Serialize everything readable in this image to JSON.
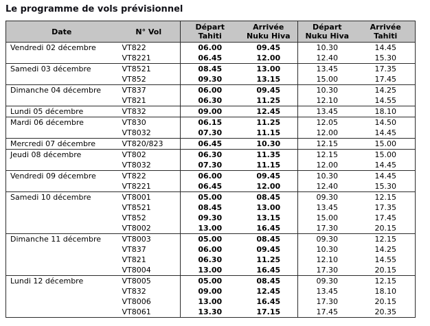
{
  "title": "Le programme de vols prévisionnel",
  "colors": {
    "header_bg": "#c6c6c6",
    "border": "#2a2a2a",
    "text": "#000000"
  },
  "table": {
    "headers": {
      "date": "Date",
      "vol": "N° Vol",
      "dep_tahiti": [
        "Départ",
        "Tahiti"
      ],
      "arr_nukuhiva": [
        "Arrivée",
        "Nuku Hiva"
      ],
      "dep_nukuhiva": [
        "Départ",
        "Nuku Hiva"
      ],
      "arr_tahiti": [
        "Arrivée",
        "Tahiti"
      ]
    },
    "groups": [
      {
        "date": "Vendredi 02 décembre",
        "flights": [
          {
            "vol": "VT822",
            "dep_tahiti": "06.00",
            "arr_nukuhiva": "09.45",
            "dep_nukuhiva": "10.30",
            "arr_tahiti": "14.45"
          },
          {
            "vol": "VT8221",
            "dep_tahiti": "06.45",
            "arr_nukuhiva": "12.00",
            "dep_nukuhiva": "12.40",
            "arr_tahiti": "15.30"
          }
        ]
      },
      {
        "date": "Samedi 03 décembre",
        "flights": [
          {
            "vol": "VT8521",
            "dep_tahiti": "08.45",
            "arr_nukuhiva": "13.00",
            "dep_nukuhiva": "13.45",
            "arr_tahiti": "17.35"
          },
          {
            "vol": "VT852",
            "dep_tahiti": "09.30",
            "arr_nukuhiva": "13.15",
            "dep_nukuhiva": "15.00",
            "arr_tahiti": "17.45"
          }
        ]
      },
      {
        "date": "Dimanche 04 décembre",
        "flights": [
          {
            "vol": "VT837",
            "dep_tahiti": "06.00",
            "arr_nukuhiva": "09.45",
            "dep_nukuhiva": "10.30",
            "arr_tahiti": "14.25"
          },
          {
            "vol": "VT821",
            "dep_tahiti": "06.30",
            "arr_nukuhiva": "11.25",
            "dep_nukuhiva": "12.10",
            "arr_tahiti": "14.55"
          }
        ]
      },
      {
        "date": "Lundi 05 décembre",
        "flights": [
          {
            "vol": "VT832",
            "dep_tahiti": "09.00",
            "arr_nukuhiva": "12.45",
            "dep_nukuhiva": "13.45",
            "arr_tahiti": "18.10"
          }
        ]
      },
      {
        "date": "Mardi 06 décembre",
        "flights": [
          {
            "vol": "VT830",
            "dep_tahiti": "06.15",
            "arr_nukuhiva": "11.25",
            "dep_nukuhiva": "12.05",
            "arr_tahiti": "14.50"
          },
          {
            "vol": "VT8032",
            "dep_tahiti": "07.30",
            "arr_nukuhiva": "11.15",
            "dep_nukuhiva": "12.00",
            "arr_tahiti": "14.45"
          }
        ]
      },
      {
        "date": "Mercredi 07 décembre",
        "flights": [
          {
            "vol": "VT820/823",
            "dep_tahiti": "06.45",
            "arr_nukuhiva": "10.30",
            "dep_nukuhiva": "12.15",
            "arr_tahiti": "15.00"
          }
        ]
      },
      {
        "date": "Jeudi 08 décembre",
        "flights": [
          {
            "vol": "VT802",
            "dep_tahiti": "06.30",
            "arr_nukuhiva": "11.35",
            "dep_nukuhiva": "12.15",
            "arr_tahiti": "15.00"
          },
          {
            "vol": "VT8032",
            "dep_tahiti": "07.30",
            "arr_nukuhiva": "11.15",
            "dep_nukuhiva": "12.00",
            "arr_tahiti": "14.45"
          }
        ]
      },
      {
        "date": "Vendredi 09 décembre",
        "flights": [
          {
            "vol": "VT822",
            "dep_tahiti": "06.00",
            "arr_nukuhiva": "09.45",
            "dep_nukuhiva": "10.30",
            "arr_tahiti": "14.45"
          },
          {
            "vol": "VT8221",
            "dep_tahiti": "06.45",
            "arr_nukuhiva": "12.00",
            "dep_nukuhiva": "12.40",
            "arr_tahiti": "15.30"
          }
        ]
      },
      {
        "date": "Samedi 10 décembre",
        "flights": [
          {
            "vol": "VT8001",
            "dep_tahiti": "05.00",
            "arr_nukuhiva": "08.45",
            "dep_nukuhiva": "09.30",
            "arr_tahiti": "12.15"
          },
          {
            "vol": "VT8521",
            "dep_tahiti": "08.45",
            "arr_nukuhiva": "13.00",
            "dep_nukuhiva": "13.45",
            "arr_tahiti": "17.35"
          },
          {
            "vol": "VT852",
            "dep_tahiti": "09.30",
            "arr_nukuhiva": "13.15",
            "dep_nukuhiva": "15.00",
            "arr_tahiti": "17.45"
          },
          {
            "vol": "VT8002",
            "dep_tahiti": "13.00",
            "arr_nukuhiva": "16.45",
            "dep_nukuhiva": "17.30",
            "arr_tahiti": "20.15"
          }
        ]
      },
      {
        "date": "Dimanche 11 décembre",
        "flights": [
          {
            "vol": "VT8003",
            "dep_tahiti": "05.00",
            "arr_nukuhiva": "08.45",
            "dep_nukuhiva": "09.30",
            "arr_tahiti": "12.15"
          },
          {
            "vol": "VT837",
            "dep_tahiti": "06.00",
            "arr_nukuhiva": "09.45",
            "dep_nukuhiva": "10.30",
            "arr_tahiti": "14.25"
          },
          {
            "vol": "VT821",
            "dep_tahiti": "06.30",
            "arr_nukuhiva": "11.25",
            "dep_nukuhiva": "12.10",
            "arr_tahiti": "14.55"
          },
          {
            "vol": "VT8004",
            "dep_tahiti": "13.00",
            "arr_nukuhiva": "16.45",
            "dep_nukuhiva": "17.30",
            "arr_tahiti": "20.15"
          }
        ]
      },
      {
        "date": "Lundi 12 décembre",
        "flights": [
          {
            "vol": "VT8005",
            "dep_tahiti": "05.00",
            "arr_nukuhiva": "08.45",
            "dep_nukuhiva": "09.30",
            "arr_tahiti": "12.15"
          },
          {
            "vol": "VT832",
            "dep_tahiti": "09.00",
            "arr_nukuhiva": "12.45",
            "dep_nukuhiva": "13.45",
            "arr_tahiti": "18.10"
          },
          {
            "vol": "VT8006",
            "dep_tahiti": "13.00",
            "arr_nukuhiva": "16.45",
            "dep_nukuhiva": "17.30",
            "arr_tahiti": "20.15"
          },
          {
            "vol": "VT8061",
            "dep_tahiti": "13.30",
            "arr_nukuhiva": "17.15",
            "dep_nukuhiva": "17.45",
            "arr_tahiti": "20.35"
          }
        ]
      }
    ]
  }
}
